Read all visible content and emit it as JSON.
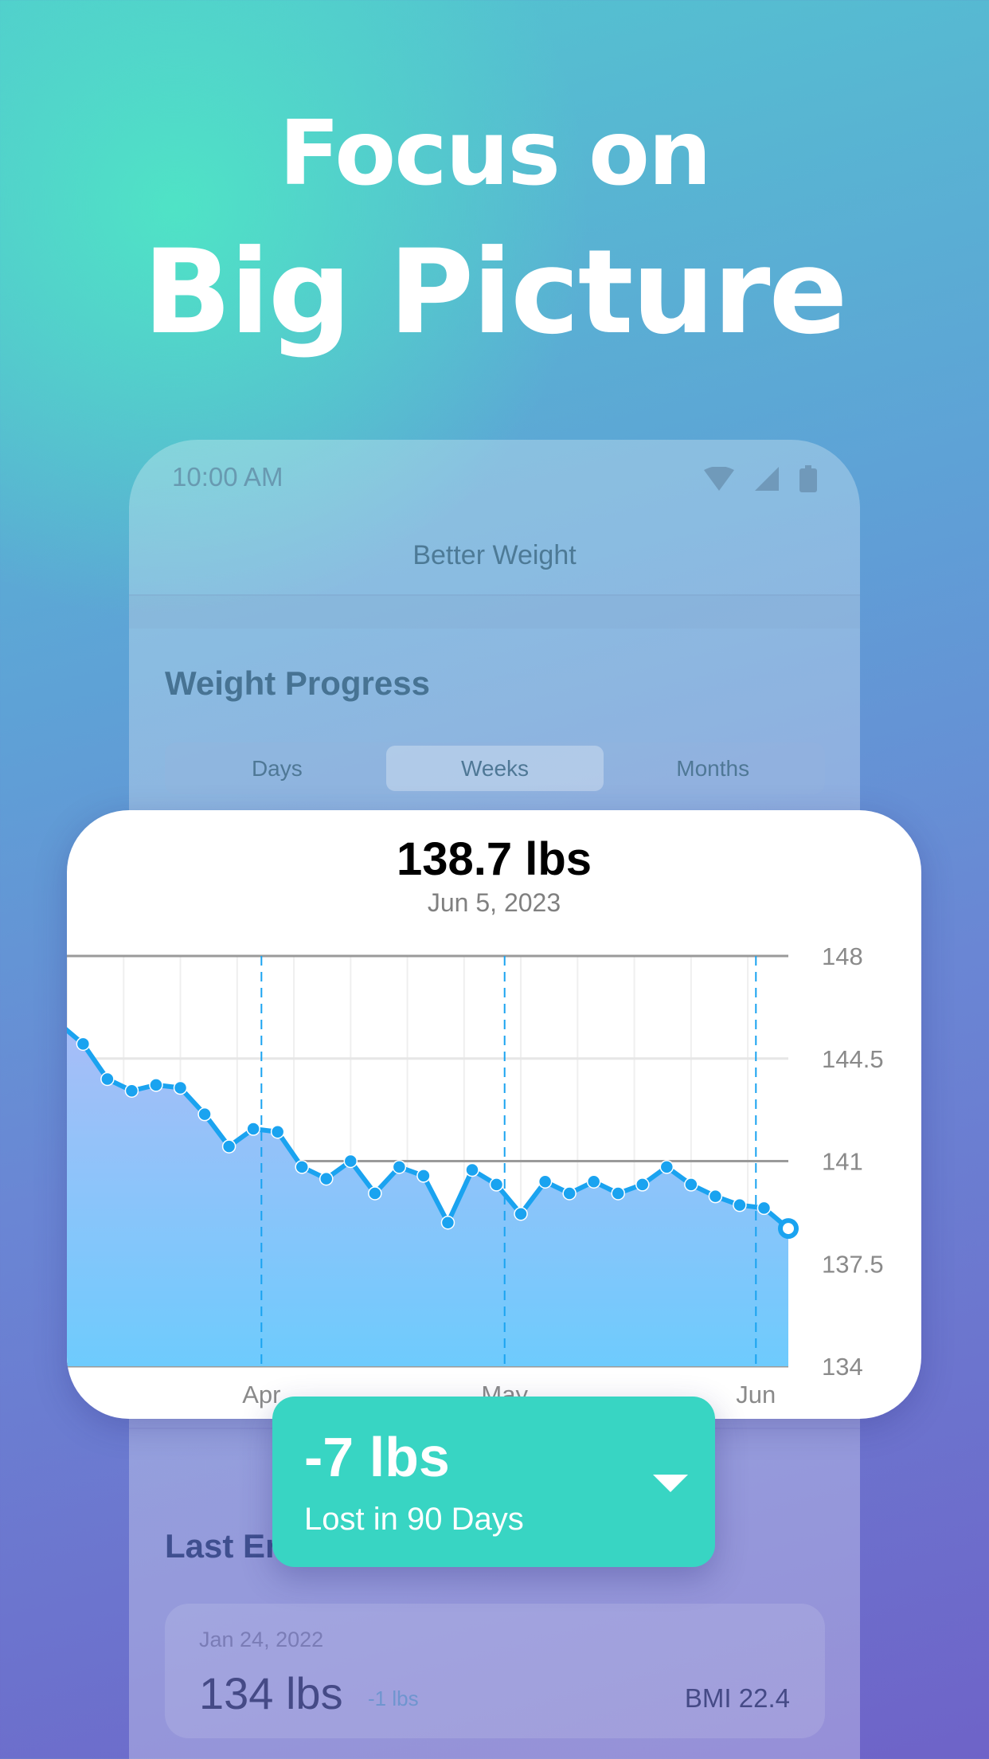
{
  "headline": {
    "line1": "Focus on",
    "line2": "Big Picture"
  },
  "status_bar": {
    "time": "10:00 AM",
    "icons": [
      "wifi-icon",
      "signal-icon",
      "battery-icon"
    ]
  },
  "app": {
    "title": "Better Weight"
  },
  "section": {
    "title": "Weight Progress",
    "tabs": [
      {
        "label": "Days"
      },
      {
        "label": "Weeks",
        "active": true
      },
      {
        "label": "Months"
      }
    ]
  },
  "selected": {
    "value": "138.7 lbs",
    "date": "Jun 5, 2023"
  },
  "summary": {
    "change": "-7 lbs",
    "caption": "Lost in 90 Days",
    "icon": "dropdown-triangle-icon",
    "color": "#38d5c3"
  },
  "last_entries": {
    "title": "Last Entries",
    "entry": {
      "date": "Jan 24, 2022",
      "weight": "134 lbs",
      "change": "-1 lbs",
      "bmi": "BMI 22.4"
    }
  },
  "chart_data": {
    "type": "area",
    "ylim": [
      134,
      148
    ],
    "y_ticks": [
      "148",
      "144.5",
      "141",
      "137.5",
      "134"
    ],
    "x_ticks": [
      {
        "label": "Apr",
        "date": "2023-04-01"
      },
      {
        "label": "May",
        "date": "2023-05-01"
      },
      {
        "label": "Jun",
        "date": "2023-06-01"
      }
    ],
    "xlim": [
      "2023-03-08",
      "2023-06-05"
    ],
    "line_color": "#1aa3f0",
    "x": [
      "2023-03-07",
      "2023-03-10",
      "2023-03-13",
      "2023-03-16",
      "2023-03-19",
      "2023-03-22",
      "2023-03-25",
      "2023-03-28",
      "2023-03-31",
      "2023-04-03",
      "2023-04-06",
      "2023-04-09",
      "2023-04-12",
      "2023-04-15",
      "2023-04-18",
      "2023-04-21",
      "2023-04-24",
      "2023-04-27",
      "2023-04-30",
      "2023-05-03",
      "2023-05-06",
      "2023-05-09",
      "2023-05-12",
      "2023-05-15",
      "2023-05-18",
      "2023-05-21",
      "2023-05-24",
      "2023-05-27",
      "2023-05-30",
      "2023-06-02",
      "2023-06-05"
    ],
    "y": [
      145.7,
      145.0,
      143.8,
      143.4,
      143.6,
      143.5,
      142.6,
      141.5,
      142.1,
      142.0,
      140.8,
      140.4,
      141.0,
      139.9,
      140.8,
      140.5,
      138.9,
      140.7,
      140.2,
      139.2,
      140.3,
      139.9,
      140.3,
      139.9,
      140.2,
      140.8,
      140.2,
      139.8,
      139.5,
      139.4,
      138.7
    ],
    "selected_index": 30
  }
}
